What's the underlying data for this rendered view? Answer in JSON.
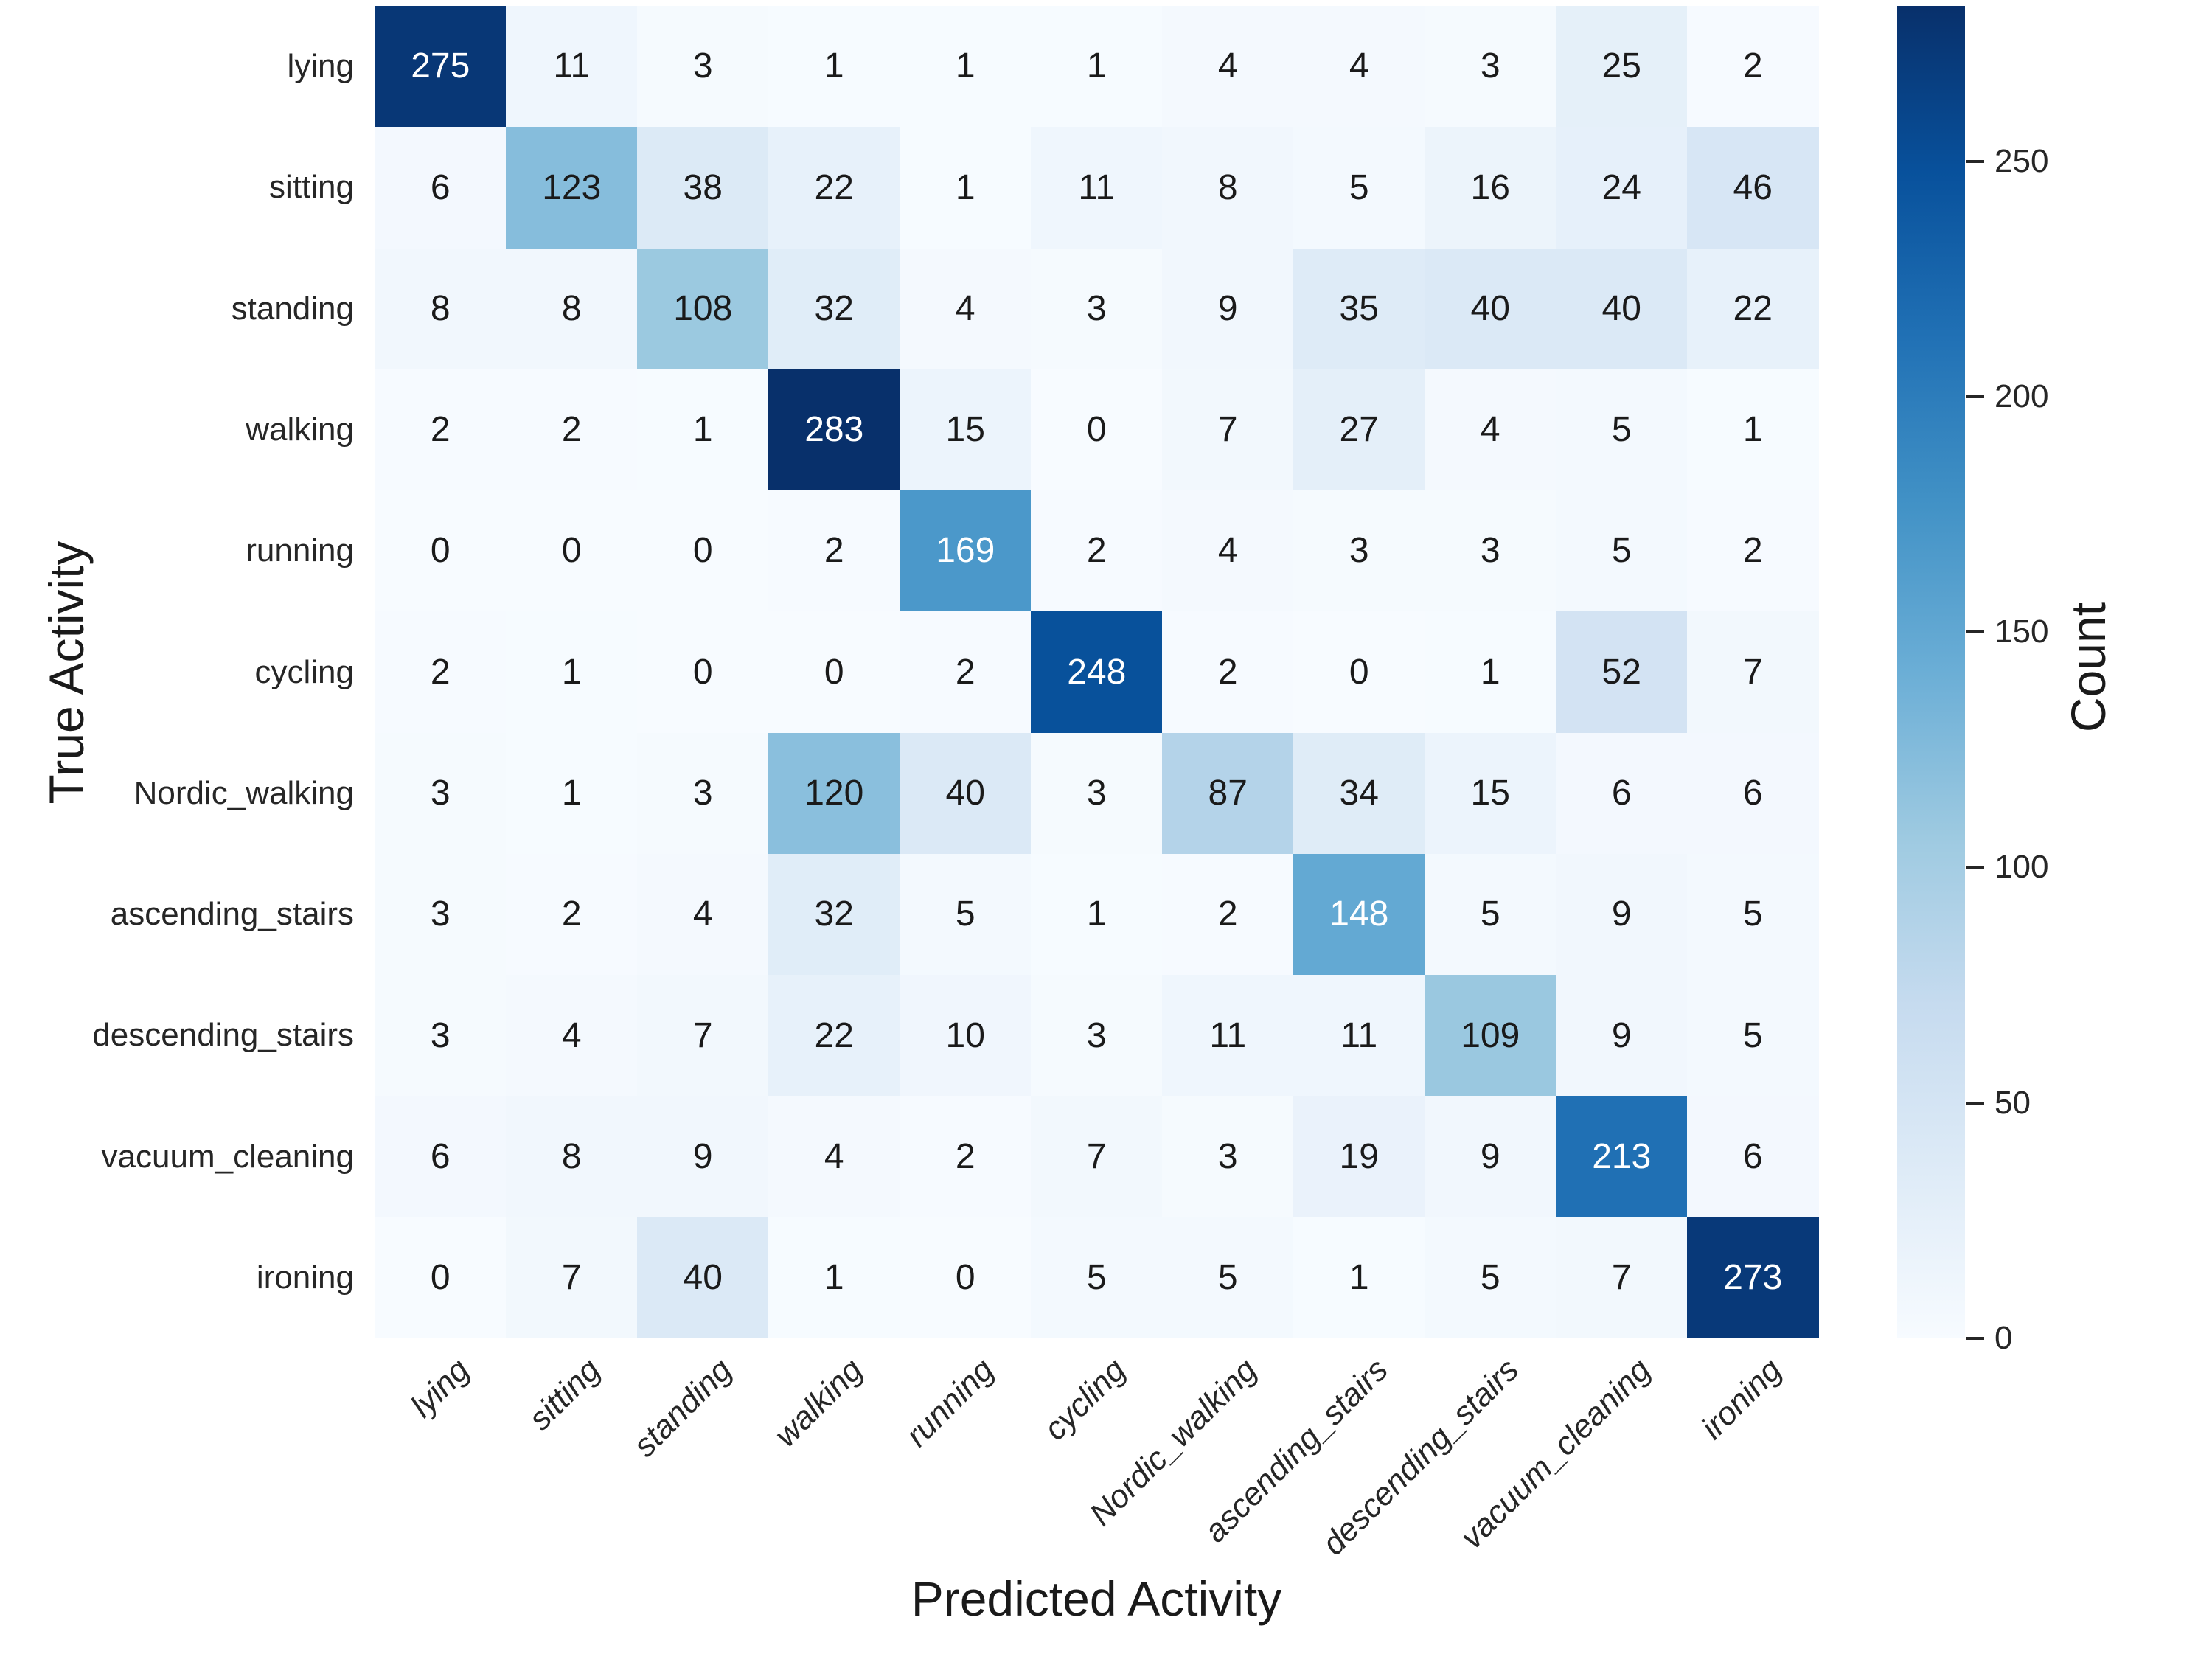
{
  "figure": {
    "background": "#ffffff"
  },
  "chart_data": {
    "type": "heatmap",
    "title": "",
    "xlabel": "Predicted Activity",
    "ylabel": "True Activity",
    "colorbar_label": "Count",
    "categories_x": [
      "lying",
      "sitting",
      "standing",
      "walking",
      "running",
      "cycling",
      "Nordic_walking",
      "ascending_stairs",
      "descending_stairs",
      "vacuum_cleaning",
      "ironing"
    ],
    "categories_y": [
      "lying",
      "sitting",
      "standing",
      "walking",
      "running",
      "cycling",
      "Nordic_walking",
      "ascending_stairs",
      "descending_stairs",
      "vacuum_cleaning",
      "ironing"
    ],
    "matrix": [
      [
        275,
        11,
        3,
        1,
        1,
        1,
        4,
        4,
        3,
        25,
        2
      ],
      [
        6,
        123,
        38,
        22,
        1,
        11,
        8,
        5,
        16,
        24,
        46
      ],
      [
        8,
        8,
        108,
        32,
        4,
        3,
        9,
        35,
        40,
        40,
        22
      ],
      [
        2,
        2,
        1,
        283,
        15,
        0,
        7,
        27,
        4,
        5,
        1
      ],
      [
        0,
        0,
        0,
        2,
        169,
        2,
        4,
        3,
        3,
        5,
        2
      ],
      [
        2,
        1,
        0,
        0,
        2,
        248,
        2,
        0,
        1,
        52,
        7
      ],
      [
        3,
        1,
        3,
        120,
        40,
        3,
        87,
        34,
        15,
        6,
        6
      ],
      [
        3,
        2,
        4,
        32,
        5,
        1,
        2,
        148,
        5,
        9,
        5
      ],
      [
        3,
        4,
        7,
        22,
        10,
        3,
        11,
        11,
        109,
        9,
        5
      ],
      [
        6,
        8,
        9,
        4,
        2,
        7,
        3,
        19,
        9,
        213,
        6
      ],
      [
        0,
        7,
        40,
        1,
        0,
        5,
        5,
        1,
        5,
        7,
        273
      ]
    ],
    "vmin": 0,
    "vmax": 283,
    "colorbar_ticks": [
      0,
      50,
      100,
      150,
      200,
      250
    ],
    "colormap": "Blues",
    "colormap_stops": [
      "#f7fbff",
      "#deebf7",
      "#c6dbef",
      "#9ecae1",
      "#6baed6",
      "#4292c6",
      "#2171b5",
      "#08519c",
      "#08306b"
    ],
    "annotation_color_dark": "#1a1a1a",
    "annotation_color_light": "#ffffff",
    "tick_color": "#262626",
    "legend_position": "right",
    "grid": false
  }
}
